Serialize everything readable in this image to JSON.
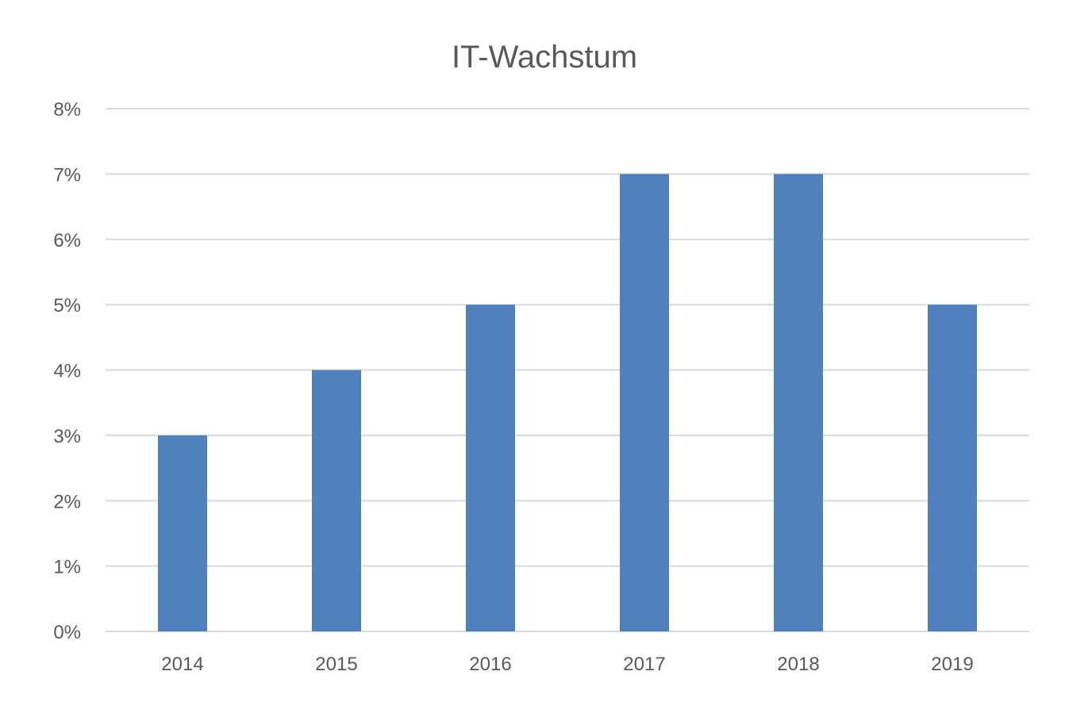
{
  "chart_data": {
    "type": "bar",
    "title": "IT-Wachstum",
    "xlabel": "",
    "ylabel": "",
    "categories": [
      "2014",
      "2015",
      "2016",
      "2017",
      "2018",
      "2019"
    ],
    "values": [
      3,
      4,
      5,
      7,
      7,
      5
    ],
    "ylim": [
      0,
      8
    ],
    "yticks": [
      0,
      1,
      2,
      3,
      4,
      5,
      6,
      7,
      8
    ],
    "ytick_suffix": "%",
    "grid": true,
    "legend": "none",
    "colors": {
      "bar": "#4f81bd",
      "grid": "#d9d9d9",
      "text": "#595959"
    }
  }
}
